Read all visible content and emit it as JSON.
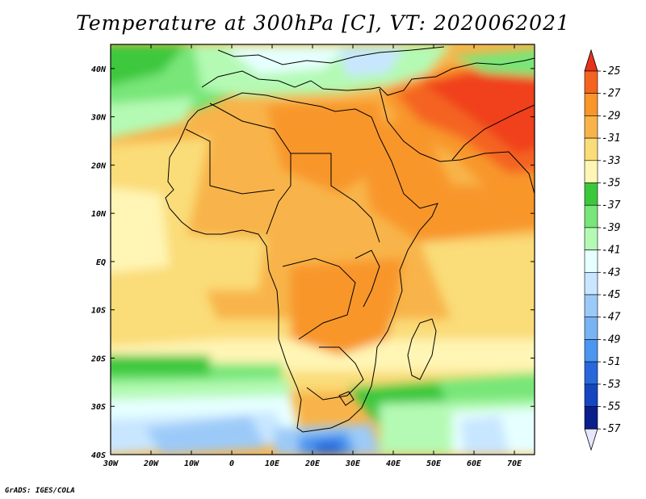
{
  "title": "Temperature at 300hPa [C], VT: 2020062021",
  "credit": "GrADS: IGES/COLA",
  "map": {
    "lon_labels": [
      "30W",
      "20W",
      "10W",
      "0",
      "10E",
      "20E",
      "30E",
      "40E",
      "50E",
      "60E",
      "70E"
    ],
    "lat_labels": [
      "40N",
      "30N",
      "20N",
      "10N",
      "EQ",
      "10S",
      "20S",
      "30S",
      "40S"
    ],
    "lon_range": [
      -30,
      75
    ],
    "lat_range": [
      -40,
      45
    ]
  },
  "legend": {
    "labels": [
      "-25",
      "-27",
      "-29",
      "-31",
      "-33",
      "-35",
      "-37",
      "-39",
      "-41",
      "-43",
      "-45",
      "-47",
      "-49",
      "-51",
      "-53",
      "-55",
      "-57"
    ],
    "colors": [
      "#f0401e",
      "#f46420",
      "#f8962a",
      "#f8b44a",
      "#fadc78",
      "#fff5b4",
      "#3cc83c",
      "#78e678",
      "#b4fab4",
      "#e6ffff",
      "#c8e6ff",
      "#9ccaf8",
      "#78b4f4",
      "#4b96f0",
      "#2868dc",
      "#1446c0",
      "#0a1e8c"
    ],
    "over_color": "#e8321e",
    "under_color": "#e6e6ff"
  }
}
